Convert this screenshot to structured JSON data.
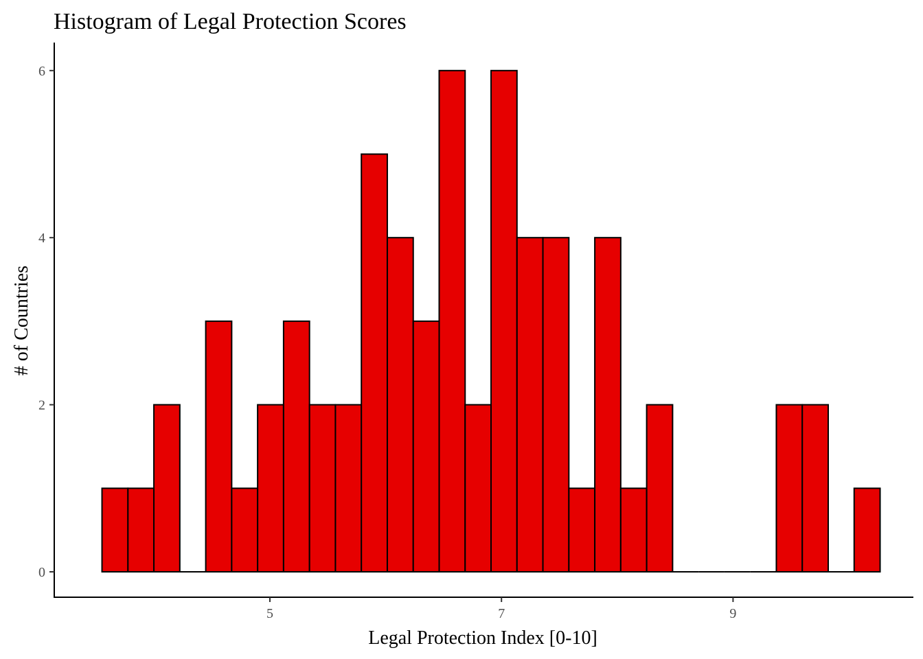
{
  "chart_data": {
    "type": "bar",
    "title": "Histogram of Legal Protection Scores",
    "xlabel": "Legal Protection Index [0-10]",
    "ylabel": "# of Countries",
    "bin_width": 0.224,
    "bins": [
      {
        "start": 3.55,
        "count": 1
      },
      {
        "start": 3.774,
        "count": 1
      },
      {
        "start": 3.998,
        "count": 2
      },
      {
        "start": 4.222,
        "count": 0
      },
      {
        "start": 4.446,
        "count": 3
      },
      {
        "start": 4.67,
        "count": 1
      },
      {
        "start": 4.894,
        "count": 2
      },
      {
        "start": 5.118,
        "count": 3
      },
      {
        "start": 5.342,
        "count": 2
      },
      {
        "start": 5.566,
        "count": 2
      },
      {
        "start": 5.79,
        "count": 5
      },
      {
        "start": 6.014,
        "count": 4
      },
      {
        "start": 6.238,
        "count": 3
      },
      {
        "start": 6.462,
        "count": 6
      },
      {
        "start": 6.686,
        "count": 2
      },
      {
        "start": 6.91,
        "count": 6
      },
      {
        "start": 7.134,
        "count": 4
      },
      {
        "start": 7.358,
        "count": 4
      },
      {
        "start": 7.582,
        "count": 1
      },
      {
        "start": 7.806,
        "count": 4
      },
      {
        "start": 8.03,
        "count": 1
      },
      {
        "start": 8.254,
        "count": 2
      },
      {
        "start": 8.478,
        "count": 0
      },
      {
        "start": 8.702,
        "count": 0
      },
      {
        "start": 8.926,
        "count": 0
      },
      {
        "start": 9.15,
        "count": 0
      },
      {
        "start": 9.374,
        "count": 2
      },
      {
        "start": 9.598,
        "count": 2
      },
      {
        "start": 9.822,
        "count": 0
      },
      {
        "start": 10.046,
        "count": 1
      }
    ],
    "x_ticks": [
      "5",
      "7",
      "9"
    ],
    "y_ticks": [
      "0",
      "2",
      "4",
      "6"
    ],
    "xlim": [
      3.2,
      10.6
    ],
    "ylim": [
      0,
      6.3
    ],
    "bar_fill": "#e60000",
    "bar_stroke": "#000000",
    "grid": false,
    "legend": "none"
  }
}
